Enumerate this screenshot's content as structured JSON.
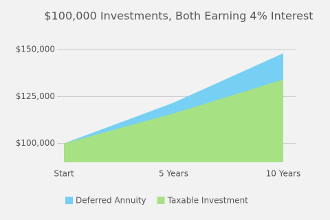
{
  "chart_data": {
    "type": "area",
    "title": "$100,000 Investments, Both Earning 4% Interest",
    "categories": [
      "Start",
      "5 Years",
      "10 Years"
    ],
    "series": [
      {
        "name": "Deferred Annuity",
        "color": "#77cff4",
        "values": [
          100000,
          121700,
          148000
        ]
      },
      {
        "name": "Taxable Investment",
        "color": "#a6e184",
        "values": [
          100000,
          116000,
          134000
        ]
      }
    ],
    "ylim": [
      90000,
      150000
    ],
    "yticks": [
      {
        "value": 100000,
        "label": "$100,000"
      },
      {
        "value": 125000,
        "label": "$125,000"
      },
      {
        "value": 150000,
        "label": "$150,000"
      }
    ],
    "grid": true,
    "legend": "bottom"
  }
}
